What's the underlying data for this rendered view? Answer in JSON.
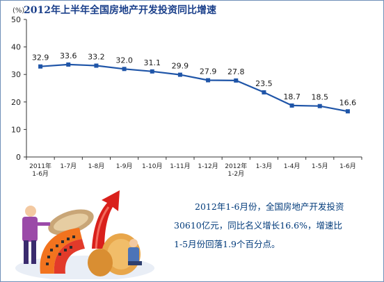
{
  "title": "2012年上半年全国房地产开发投资同比增速",
  "summary": {
    "line1": "2012年1-6月份，全国房地产开发投资",
    "line2": "30610亿元，同比名义增长16.6%，增速比",
    "line3": "1-5月份回落1.9个百分点。"
  },
  "colors": {
    "line": "#1f55a8",
    "marker": "#1f55a8",
    "axis": "#333333",
    "title": "#1a3f8a",
    "summary_text": "#003a7a"
  },
  "chart_data": {
    "type": "line",
    "title": "2012年上半年全国房地产开发投资同比增速",
    "ylabel": "(%)",
    "ylim": [
      0,
      50
    ],
    "yticks": [
      0,
      10,
      20,
      30,
      40,
      50
    ],
    "grid": false,
    "categories": [
      [
        "2011年",
        "1-6月"
      ],
      [
        "1-7月"
      ],
      [
        "1-8月"
      ],
      [
        "1-9月"
      ],
      [
        "1-10月"
      ],
      [
        "1-11月"
      ],
      [
        "1-12月"
      ],
      [
        "2012年",
        "1-2月"
      ],
      [
        "1-3月"
      ],
      [
        "1-4月"
      ],
      [
        "1-5月"
      ],
      [
        "1-6月"
      ]
    ],
    "series": [
      {
        "values": [
          32.9,
          33.6,
          33.2,
          32.0,
          31.1,
          29.9,
          27.9,
          27.8,
          23.5,
          18.7,
          18.5,
          16.6
        ],
        "data_labels": [
          "32.9",
          "33.6",
          "33.2",
          "32.0",
          "31.1",
          "29.9",
          "27.9",
          "27.8",
          "23.5",
          "18.7",
          "18.5",
          "16.6"
        ]
      }
    ]
  }
}
